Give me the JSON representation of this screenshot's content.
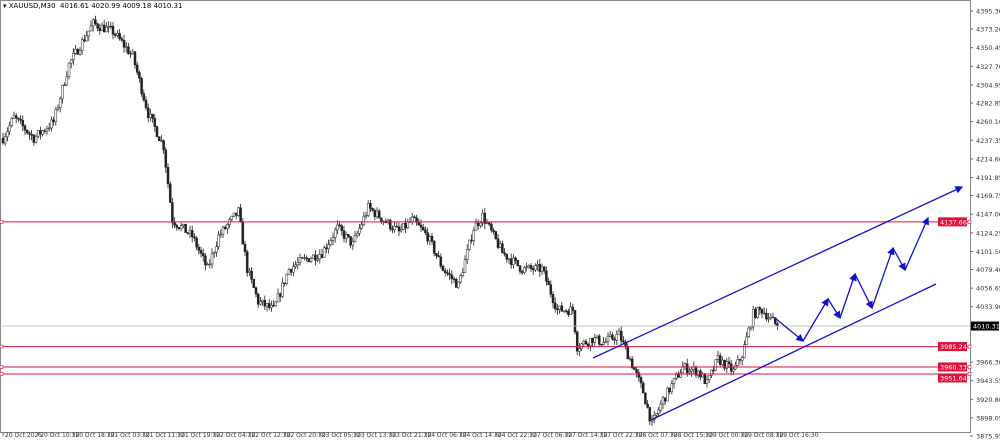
{
  "header": {
    "symbol_timeframe": "XAUUSD,M30",
    "ohlc": "4016.61 4020.99 4009.18 4010.31"
  },
  "chart_data": {
    "type": "candlestick",
    "title": "XAUUSD,M30",
    "ylim": [
      3875.95,
      4395.3
    ],
    "y_ticks": [
      "4395.30",
      "4373.20",
      "4350.45",
      "4327.70",
      "4304.95",
      "4282.85",
      "4260.10",
      "4237.35",
      "4214.60",
      "4191.85",
      "4169.75",
      "4147.00",
      "4124.25",
      "4101.50",
      "4079.40",
      "4056.65",
      "4033.90",
      "3966.30",
      "3943.55",
      "3920.80",
      "3898.05",
      "3875.95"
    ],
    "x_ticks": [
      "20 Oct 2025",
      "20 Oct 10:30",
      "20 Oct 18:30",
      "21 Oct 03:30",
      "21 Oct 11:30",
      "21 Oct 19:30",
      "22 Oct 04:30",
      "22 Oct 12:30",
      "22 Oct 20:30",
      "23 Oct 05:30",
      "23 Oct 13:30",
      "23 Oct 21:30",
      "24 Oct 06:30",
      "24 Oct 14:30",
      "24 Oct 22:30",
      "27 Oct 06:30",
      "27 Oct 14:30",
      "27 Oct 22:30",
      "28 Oct 07:30",
      "28 Oct 15:30",
      "29 Oct 00:30",
      "29 Oct 08:30",
      "29 Oct 16:30"
    ],
    "bars_per_tick": 16,
    "approx_close_path": [
      [
        0,
        4240
      ],
      [
        5,
        4265
      ],
      [
        14,
        4240
      ],
      [
        23,
        4260
      ],
      [
        30,
        4330
      ],
      [
        41,
        4380
      ],
      [
        50,
        4370
      ],
      [
        59,
        4340
      ],
      [
        66,
        4270
      ],
      [
        73,
        4230
      ],
      [
        77,
        4140
      ],
      [
        86,
        4120
      ],
      [
        93,
        4080
      ],
      [
        98,
        4120
      ],
      [
        107,
        4150
      ],
      [
        111,
        4080
      ],
      [
        116,
        4040
      ],
      [
        123,
        4030
      ],
      [
        130,
        4080
      ],
      [
        136,
        4090
      ],
      [
        145,
        4100
      ],
      [
        152,
        4130
      ],
      [
        159,
        4110
      ],
      [
        166,
        4155
      ],
      [
        173,
        4140
      ],
      [
        180,
        4125
      ],
      [
        186,
        4140
      ],
      [
        193,
        4120
      ],
      [
        200,
        4080
      ],
      [
        207,
        4060
      ],
      [
        214,
        4130
      ],
      [
        218,
        4145
      ],
      [
        227,
        4100
      ],
      [
        236,
        4080
      ],
      [
        245,
        4080
      ],
      [
        252,
        4030
      ],
      [
        259,
        4030
      ],
      [
        261,
        3985
      ],
      [
        268,
        3995
      ],
      [
        273,
        3990
      ],
      [
        280,
        4000
      ],
      [
        285,
        3970
      ],
      [
        291,
        3930
      ],
      [
        295,
        3890
      ],
      [
        300,
        3920
      ],
      [
        309,
        3960
      ],
      [
        316,
        3955
      ],
      [
        320,
        3940
      ],
      [
        325,
        3970
      ],
      [
        332,
        3955
      ],
      [
        336,
        3975
      ],
      [
        341,
        4025
      ],
      [
        345,
        4030
      ],
      [
        352,
        4010.31
      ]
    ],
    "last_price": "4010.31",
    "levels": [
      {
        "price": "4137.66",
        "color": "#e0103a"
      },
      {
        "price": "3985.24",
        "color": "#e0103a"
      },
      {
        "price": "3960.33",
        "color": "#e0103a"
      },
      {
        "price": "3951.64",
        "color": "#e0103a"
      }
    ],
    "colors": {
      "bull": "#2e7d32",
      "bear": "#b71c1c",
      "channel": "#1010d0",
      "level": "#e0103a",
      "last_price_bg": "#000000"
    },
    "annotations": "ascending channel with projected zigzag arrows"
  }
}
